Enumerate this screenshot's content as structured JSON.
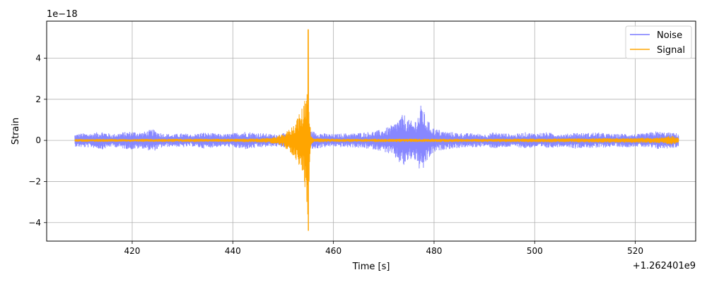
{
  "chart_data": {
    "type": "line",
    "title": "",
    "xlabel": "Time [s]",
    "ylabel": "Strain",
    "x_offset_label": "+1.262401e9",
    "y_scale_label": "1e−18",
    "xlim": [
      403,
      532
    ],
    "ylim": [
      -4.9,
      5.8
    ],
    "x_ticks": [
      420,
      440,
      460,
      480,
      500,
      520
    ],
    "y_ticks": [
      -4,
      -2,
      0,
      2,
      4
    ],
    "x_tick_labels": [
      "420",
      "440",
      "460",
      "480",
      "500",
      "520"
    ],
    "y_tick_labels": [
      "−4",
      "−2",
      "0",
      "2",
      "4"
    ],
    "grid": true,
    "legend_position": "top-right",
    "series": [
      {
        "name": "Noise",
        "color": "#7a7aff",
        "x_range": [
          408.6,
          528.6
        ],
        "envelope": [
          [
            408.6,
            0.3
          ],
          [
            410,
            0.35
          ],
          [
            412,
            0.35
          ],
          [
            414,
            0.45
          ],
          [
            416,
            0.3
          ],
          [
            418,
            0.4
          ],
          [
            420,
            0.45
          ],
          [
            422,
            0.4
          ],
          [
            424,
            0.55
          ],
          [
            426,
            0.35
          ],
          [
            428,
            0.3
          ],
          [
            430,
            0.35
          ],
          [
            432,
            0.3
          ],
          [
            434,
            0.4
          ],
          [
            436,
            0.35
          ],
          [
            438,
            0.3
          ],
          [
            440,
            0.35
          ],
          [
            442,
            0.45
          ],
          [
            444,
            0.4
          ],
          [
            446,
            0.35
          ],
          [
            448,
            0.3
          ],
          [
            450,
            0.35
          ],
          [
            452,
            0.3
          ],
          [
            454,
            0.4
          ],
          [
            456,
            0.45
          ],
          [
            458,
            0.35
          ],
          [
            460,
            0.3
          ],
          [
            462,
            0.35
          ],
          [
            464,
            0.35
          ],
          [
            466,
            0.4
          ],
          [
            468,
            0.45
          ],
          [
            470,
            0.55
          ],
          [
            472,
            0.8
          ],
          [
            473,
            1.1
          ],
          [
            474,
            1.3
          ],
          [
            475,
            1.0
          ],
          [
            476,
            0.9
          ],
          [
            477,
            1.4
          ],
          [
            477.6,
            1.9
          ],
          [
            478.2,
            1.2
          ],
          [
            479,
            0.9
          ],
          [
            480,
            0.6
          ],
          [
            482,
            0.45
          ],
          [
            484,
            0.4
          ],
          [
            486,
            0.35
          ],
          [
            488,
            0.35
          ],
          [
            490,
            0.3
          ],
          [
            492,
            0.4
          ],
          [
            494,
            0.35
          ],
          [
            496,
            0.3
          ],
          [
            498,
            0.4
          ],
          [
            500,
            0.35
          ],
          [
            502,
            0.4
          ],
          [
            504,
            0.35
          ],
          [
            506,
            0.3
          ],
          [
            508,
            0.4
          ],
          [
            510,
            0.35
          ],
          [
            512,
            0.4
          ],
          [
            514,
            0.35
          ],
          [
            516,
            0.3
          ],
          [
            518,
            0.35
          ],
          [
            520,
            0.3
          ],
          [
            522,
            0.35
          ],
          [
            524,
            0.45
          ],
          [
            526,
            0.4
          ],
          [
            528.6,
            0.35
          ]
        ]
      },
      {
        "name": "Signal",
        "color": "#ffa500",
        "x_range": [
          408.6,
          528.6
        ],
        "envelope": [
          [
            408.6,
            0.07
          ],
          [
            420,
            0.07
          ],
          [
            430,
            0.08
          ],
          [
            440,
            0.08
          ],
          [
            446,
            0.1
          ],
          [
            448,
            0.15
          ],
          [
            450,
            0.3
          ],
          [
            451.5,
            0.6
          ],
          [
            452.5,
            1.0
          ],
          [
            453.5,
            1.4
          ],
          [
            454.2,
            2.0
          ],
          [
            454.7,
            3.0
          ],
          [
            455.0,
            4.3
          ],
          [
            455.2,
            1.6
          ],
          [
            455.5,
            0.25
          ],
          [
            456,
            0.1
          ],
          [
            460,
            0.08
          ],
          [
            470,
            0.08
          ],
          [
            480,
            0.08
          ],
          [
            490,
            0.08
          ],
          [
            500,
            0.09
          ],
          [
            510,
            0.1
          ],
          [
            520,
            0.12
          ],
          [
            526,
            0.15
          ],
          [
            527,
            0.25
          ],
          [
            528.6,
            0.12
          ]
        ],
        "peak": {
          "x": 455.0,
          "max": 5.4,
          "min": -4.4
        }
      }
    ]
  }
}
